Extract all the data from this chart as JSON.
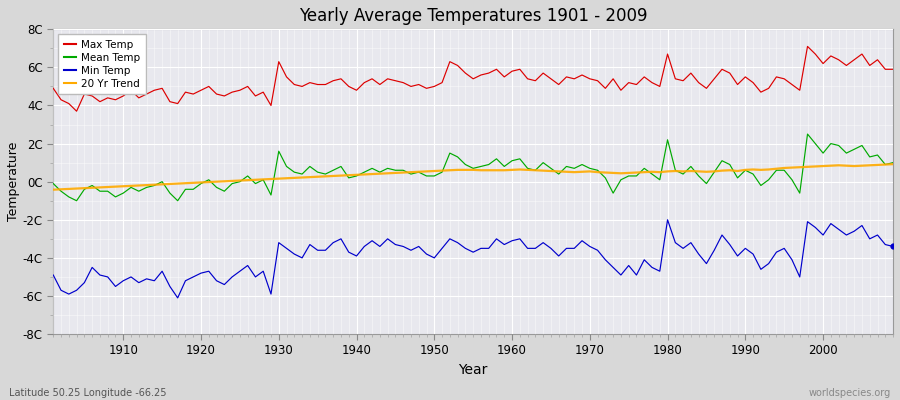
{
  "title": "Yearly Average Temperatures 1901 - 2009",
  "xlabel": "Year",
  "ylabel": "Temperature",
  "lat_lon_label": "Latitude 50.25 Longitude -66.25",
  "watermark": "worldspecies.org",
  "ylim": [
    -8,
    8
  ],
  "yticks": [
    -8,
    -6,
    -4,
    -2,
    0,
    2,
    4,
    6,
    8
  ],
  "ytick_labels": [
    "-8C",
    "-6C",
    "-4C",
    "-2C",
    "0C",
    "2C",
    "4C",
    "6C",
    "8C"
  ],
  "xlim": [
    1901,
    2009
  ],
  "fig_facecolor": "#d8d8d8",
  "plot_facecolor": "#e8e8ee",
  "grid_color": "#ffffff",
  "colors": {
    "max": "#dd0000",
    "mean": "#00aa00",
    "min": "#0000cc",
    "trend": "#ffaa00"
  },
  "legend_labels": [
    "Max Temp",
    "Mean Temp",
    "Min Temp",
    "20 Yr Trend"
  ],
  "years": [
    1901,
    1902,
    1903,
    1904,
    1905,
    1906,
    1907,
    1908,
    1909,
    1910,
    1911,
    1912,
    1913,
    1914,
    1915,
    1916,
    1917,
    1918,
    1919,
    1920,
    1921,
    1922,
    1923,
    1924,
    1925,
    1926,
    1927,
    1928,
    1929,
    1930,
    1931,
    1932,
    1933,
    1934,
    1935,
    1936,
    1937,
    1938,
    1939,
    1940,
    1941,
    1942,
    1943,
    1944,
    1945,
    1946,
    1947,
    1948,
    1949,
    1950,
    1951,
    1952,
    1953,
    1954,
    1955,
    1956,
    1957,
    1958,
    1959,
    1960,
    1961,
    1962,
    1963,
    1964,
    1965,
    1966,
    1967,
    1968,
    1969,
    1970,
    1971,
    1972,
    1973,
    1974,
    1975,
    1976,
    1977,
    1978,
    1979,
    1980,
    1981,
    1982,
    1983,
    1984,
    1985,
    1986,
    1987,
    1988,
    1989,
    1990,
    1991,
    1992,
    1993,
    1994,
    1995,
    1996,
    1997,
    1998,
    1999,
    2000,
    2001,
    2002,
    2003,
    2004,
    2005,
    2006,
    2007,
    2008,
    2009
  ],
  "max_temp": [
    4.9,
    4.3,
    4.1,
    3.7,
    4.6,
    4.5,
    4.2,
    4.4,
    4.3,
    4.5,
    4.8,
    4.4,
    4.6,
    4.8,
    4.9,
    4.2,
    4.1,
    4.7,
    4.6,
    4.8,
    5.0,
    4.6,
    4.5,
    4.7,
    4.8,
    5.0,
    4.5,
    4.7,
    4.0,
    6.3,
    5.5,
    5.1,
    5.0,
    5.2,
    5.1,
    5.1,
    5.3,
    5.4,
    5.0,
    4.8,
    5.2,
    5.4,
    5.1,
    5.4,
    5.3,
    5.2,
    5.0,
    5.1,
    4.9,
    5.0,
    5.2,
    6.3,
    6.1,
    5.7,
    5.4,
    5.6,
    5.7,
    5.9,
    5.5,
    5.8,
    5.9,
    5.4,
    5.3,
    5.7,
    5.4,
    5.1,
    5.5,
    5.4,
    5.6,
    5.4,
    5.3,
    4.9,
    5.4,
    4.8,
    5.2,
    5.1,
    5.5,
    5.2,
    5.0,
    6.7,
    5.4,
    5.3,
    5.7,
    5.2,
    4.9,
    5.4,
    5.9,
    5.7,
    5.1,
    5.5,
    5.2,
    4.7,
    4.9,
    5.5,
    5.4,
    5.1,
    4.8,
    7.1,
    6.7,
    6.2,
    6.6,
    6.4,
    6.1,
    6.4,
    6.7,
    6.1,
    6.4,
    5.9,
    5.9
  ],
  "mean_temp": [
    -0.1,
    -0.5,
    -0.8,
    -1.0,
    -0.4,
    -0.2,
    -0.5,
    -0.5,
    -0.8,
    -0.6,
    -0.3,
    -0.5,
    -0.3,
    -0.2,
    0.0,
    -0.6,
    -1.0,
    -0.4,
    -0.4,
    -0.1,
    0.1,
    -0.3,
    -0.5,
    -0.1,
    0.0,
    0.3,
    -0.1,
    0.1,
    -0.7,
    1.6,
    0.8,
    0.5,
    0.4,
    0.8,
    0.5,
    0.4,
    0.6,
    0.8,
    0.2,
    0.3,
    0.5,
    0.7,
    0.5,
    0.7,
    0.6,
    0.6,
    0.4,
    0.5,
    0.3,
    0.3,
    0.5,
    1.5,
    1.3,
    0.9,
    0.7,
    0.8,
    0.9,
    1.2,
    0.8,
    1.1,
    1.2,
    0.7,
    0.6,
    1.0,
    0.7,
    0.4,
    0.8,
    0.7,
    0.9,
    0.7,
    0.6,
    0.2,
    -0.6,
    0.1,
    0.3,
    0.3,
    0.7,
    0.4,
    0.1,
    2.2,
    0.6,
    0.4,
    0.8,
    0.3,
    -0.1,
    0.5,
    1.1,
    0.9,
    0.2,
    0.6,
    0.4,
    -0.2,
    0.1,
    0.6,
    0.6,
    0.1,
    -0.6,
    2.5,
    2.0,
    1.5,
    2.0,
    1.9,
    1.5,
    1.7,
    1.9,
    1.3,
    1.4,
    0.9,
    1.0
  ],
  "min_temp": [
    -4.9,
    -5.7,
    -5.9,
    -5.7,
    -5.3,
    -4.5,
    -4.9,
    -5.0,
    -5.5,
    -5.2,
    -5.0,
    -5.3,
    -5.1,
    -5.2,
    -4.7,
    -5.5,
    -6.1,
    -5.2,
    -5.0,
    -4.8,
    -4.7,
    -5.2,
    -5.4,
    -5.0,
    -4.7,
    -4.4,
    -5.0,
    -4.7,
    -5.9,
    -3.2,
    -3.5,
    -3.8,
    -4.0,
    -3.3,
    -3.6,
    -3.6,
    -3.2,
    -3.0,
    -3.7,
    -3.9,
    -3.4,
    -3.1,
    -3.4,
    -3.0,
    -3.3,
    -3.4,
    -3.6,
    -3.4,
    -3.8,
    -4.0,
    -3.5,
    -3.0,
    -3.2,
    -3.5,
    -3.7,
    -3.5,
    -3.5,
    -3.0,
    -3.3,
    -3.1,
    -3.0,
    -3.5,
    -3.5,
    -3.2,
    -3.5,
    -3.9,
    -3.5,
    -3.5,
    -3.1,
    -3.4,
    -3.6,
    -4.1,
    -4.5,
    -4.9,
    -4.4,
    -4.9,
    -4.1,
    -4.5,
    -4.7,
    -2.0,
    -3.2,
    -3.5,
    -3.2,
    -3.8,
    -4.3,
    -3.6,
    -2.8,
    -3.3,
    -3.9,
    -3.5,
    -3.8,
    -4.6,
    -4.3,
    -3.7,
    -3.5,
    -4.1,
    -5.0,
    -2.1,
    -2.4,
    -2.8,
    -2.2,
    -2.5,
    -2.8,
    -2.6,
    -2.3,
    -3.0,
    -2.8,
    -3.3,
    -3.4
  ],
  "trend": [
    -0.42,
    -0.4,
    -0.38,
    -0.36,
    -0.34,
    -0.32,
    -0.3,
    -0.28,
    -0.26,
    -0.24,
    -0.22,
    -0.2,
    -0.18,
    -0.16,
    -0.14,
    -0.12,
    -0.1,
    -0.08,
    -0.06,
    -0.04,
    -0.02,
    0.0,
    0.02,
    0.04,
    0.06,
    0.08,
    0.1,
    0.12,
    0.14,
    0.16,
    0.18,
    0.2,
    0.22,
    0.24,
    0.26,
    0.28,
    0.3,
    0.32,
    0.34,
    0.36,
    0.38,
    0.4,
    0.42,
    0.44,
    0.46,
    0.48,
    0.5,
    0.52,
    0.54,
    0.56,
    0.58,
    0.6,
    0.62,
    0.62,
    0.62,
    0.6,
    0.6,
    0.6,
    0.6,
    0.62,
    0.64,
    0.62,
    0.6,
    0.58,
    0.56,
    0.54,
    0.52,
    0.5,
    0.52,
    0.54,
    0.5,
    0.48,
    0.46,
    0.44,
    0.46,
    0.48,
    0.5,
    0.52,
    0.5,
    0.54,
    0.56,
    0.54,
    0.56,
    0.54,
    0.52,
    0.54,
    0.58,
    0.6,
    0.56,
    0.62,
    0.64,
    0.62,
    0.64,
    0.68,
    0.72,
    0.74,
    0.76,
    0.78,
    0.8,
    0.82,
    0.84,
    0.86,
    0.84,
    0.82,
    0.84,
    0.86,
    0.88,
    0.9,
    0.92
  ]
}
